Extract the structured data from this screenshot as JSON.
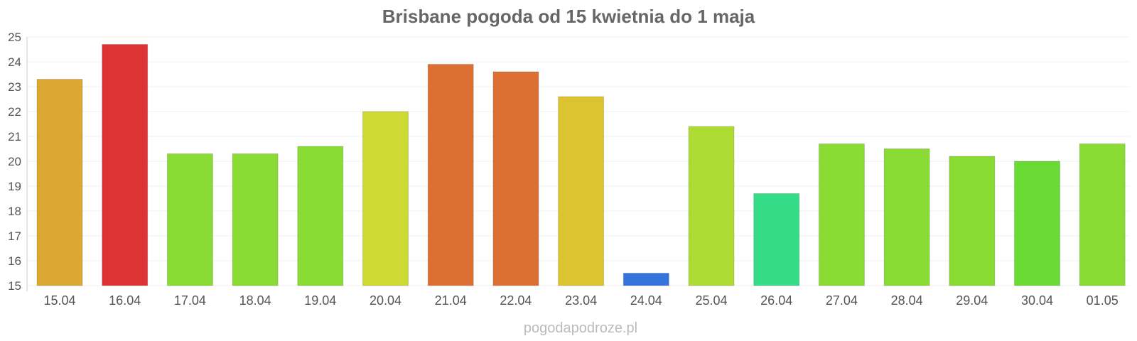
{
  "chart_data": {
    "type": "bar",
    "title": "Brisbane pogoda od 15 kwietnia do 1 maja",
    "xlabel": "",
    "ylabel": "",
    "ylim": [
      15,
      25
    ],
    "yticks": [
      "15",
      "16",
      "17",
      "18",
      "19",
      "20",
      "21",
      "22",
      "23",
      "24",
      "25"
    ],
    "grid": true,
    "categories": [
      "15.04",
      "16.04",
      "17.04",
      "18.04",
      "19.04",
      "20.04",
      "21.04",
      "22.04",
      "23.04",
      "24.04",
      "25.04",
      "26.04",
      "27.04",
      "28.04",
      "29.04",
      "30.04",
      "01.05"
    ],
    "values": [
      23.3,
      24.7,
      20.3,
      20.3,
      20.6,
      22.0,
      23.9,
      23.6,
      22.6,
      15.5,
      21.4,
      18.7,
      20.7,
      20.5,
      20.2,
      20.0,
      20.7
    ],
    "colors": [
      "#dba834",
      "#dc3434",
      "#8adb34",
      "#8adb34",
      "#8adb34",
      "#ceda31",
      "#dc7034",
      "#dc7034",
      "#dcc431",
      "#3474dc",
      "#acdb34",
      "#34dc88",
      "#8adb34",
      "#8adb34",
      "#8adb34",
      "#69db34",
      "#8adb34"
    ]
  },
  "watermark": "pogodapodroze.pl"
}
